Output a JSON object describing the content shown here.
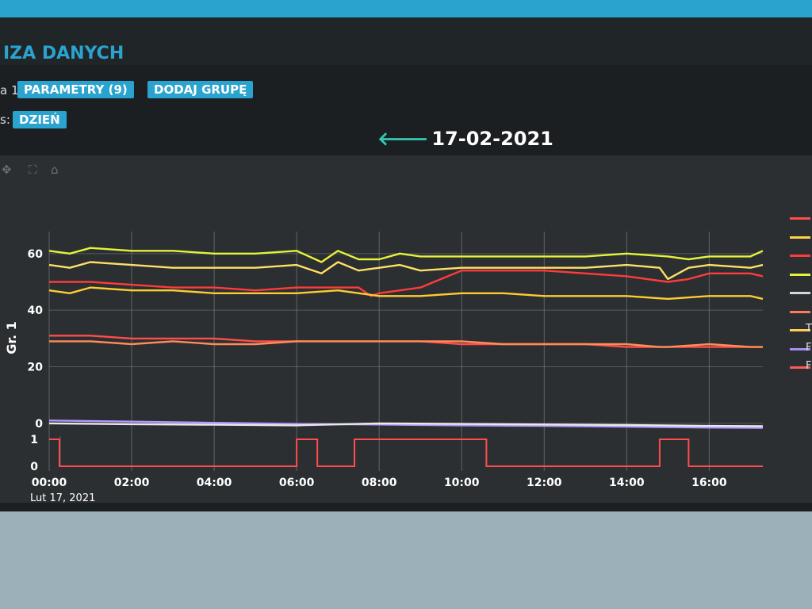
{
  "header": {
    "title": "IZA DANYCH"
  },
  "controls": {
    "group_label": "a 1",
    "params_button": "PARAMETRY (9)",
    "add_group_button": "DODAJ GRUPĘ",
    "range_label": "s:",
    "range_button": "DZIEŃ"
  },
  "date_nav": {
    "arrow": "🡐",
    "date": "17-02-2021"
  },
  "toolbar": {
    "pan_icon": "✥",
    "zoom_icon": "⛶",
    "home_icon": "⌂"
  },
  "legend": [
    {
      "color": "#ff4d4d",
      "label": ""
    },
    {
      "color": "#ffd24a",
      "label": ""
    },
    {
      "color": "#ff3b3b",
      "label": ""
    },
    {
      "color": "#e6f23a",
      "label": ""
    },
    {
      "color": "#d6d6d6",
      "label": ""
    },
    {
      "color": "#ff7a5a",
      "label": ""
    },
    {
      "color": "#ffcc55",
      "label": "T"
    },
    {
      "color": "#a98cf0",
      "label": "F"
    },
    {
      "color": "#ff5a5a",
      "label": "F"
    }
  ],
  "chart_data": [
    {
      "type": "line",
      "ylabel": "Gr. 1",
      "ylim": [
        -2,
        65
      ],
      "yticks": [
        0,
        20,
        40,
        60
      ],
      "xlim": [
        0,
        17.3
      ],
      "grid": true,
      "series": [
        {
          "color": "#e6f23a",
          "x": [
            0,
            0.5,
            1,
            2,
            3,
            4,
            5,
            6,
            6.6,
            7,
            7.5,
            8,
            8.5,
            9,
            10,
            11,
            12,
            13,
            14,
            15,
            15.5,
            16,
            17,
            17.3
          ],
          "y": [
            61,
            60,
            62,
            61,
            61,
            60,
            60,
            61,
            57,
            61,
            58,
            58,
            60,
            59,
            59,
            59,
            59,
            59,
            60,
            59,
            58,
            59,
            59,
            61
          ]
        },
        {
          "color": "#ffe066",
          "x": [
            0,
            0.5,
            1,
            2,
            3,
            4,
            5,
            6,
            6.6,
            7,
            7.5,
            8,
            8.5,
            9,
            10,
            11,
            12,
            13,
            14,
            14.8,
            15,
            15.5,
            16,
            17,
            17.3
          ],
          "y": [
            56,
            55,
            57,
            56,
            55,
            55,
            55,
            56,
            53,
            57,
            54,
            55,
            56,
            54,
            55,
            55,
            55,
            55,
            56,
            55,
            51,
            55,
            56,
            55,
            56
          ]
        },
        {
          "color": "#ff3b3b",
          "x": [
            0,
            1,
            2,
            3,
            4,
            5,
            6,
            7,
            7.5,
            7.8,
            8,
            8.5,
            9,
            9.5,
            10,
            11,
            12,
            13,
            14,
            15,
            15.5,
            16,
            17,
            17.3
          ],
          "y": [
            50,
            50,
            49,
            48,
            48,
            47,
            48,
            48,
            48,
            45,
            46,
            47,
            48,
            51,
            54,
            54,
            54,
            53,
            52,
            50,
            51,
            53,
            53,
            52
          ]
        },
        {
          "color": "#ffcc33",
          "x": [
            0,
            0.5,
            1,
            2,
            3,
            4,
            5,
            6,
            7,
            8,
            9,
            10,
            11,
            12,
            13,
            14,
            15,
            16,
            17,
            17.3
          ],
          "y": [
            47,
            46,
            48,
            47,
            47,
            46,
            46,
            46,
            47,
            45,
            45,
            46,
            46,
            45,
            45,
            45,
            44,
            45,
            45,
            44
          ]
        },
        {
          "color": "#ff4d4d",
          "x": [
            0,
            1,
            2,
            3,
            4,
            5,
            6,
            7,
            8,
            9,
            10,
            11,
            12,
            13,
            14,
            15,
            16,
            17,
            17.3
          ],
          "y": [
            31,
            31,
            30,
            30,
            30,
            29,
            29,
            29,
            29,
            29,
            28,
            28,
            28,
            28,
            27,
            27,
            27,
            27,
            27
          ]
        },
        {
          "color": "#ff8c5a",
          "x": [
            0,
            1,
            2,
            3,
            4,
            5,
            6,
            7,
            8,
            9,
            10,
            11,
            12,
            13,
            14,
            14.8,
            15,
            16,
            17,
            17.3
          ],
          "y": [
            29,
            29,
            28,
            29,
            28,
            28,
            29,
            29,
            29,
            29,
            29,
            28,
            28,
            28,
            28,
            27,
            27,
            28,
            27,
            27
          ]
        },
        {
          "color": "#b497ff",
          "x": [
            0,
            2,
            4,
            6,
            8,
            10,
            12,
            14,
            16,
            17.3
          ],
          "y": [
            1,
            0.6,
            0.2,
            -0.2,
            -0.4,
            -0.7,
            -0.9,
            -1.2,
            -1.5,
            -1.6
          ]
        },
        {
          "color": "#e8e8e8",
          "x": [
            0,
            2,
            4,
            6,
            8,
            10,
            12,
            14,
            16,
            17.3
          ],
          "y": [
            0,
            -0.3,
            -0.5,
            -0.7,
            0,
            -0.2,
            -0.4,
            -0.6,
            -0.9,
            -1
          ]
        }
      ]
    },
    {
      "type": "line",
      "ylim": [
        0,
        1
      ],
      "yticks": [
        0,
        1
      ],
      "xlim": [
        0,
        17.3
      ],
      "grid": true,
      "xticks": [
        "00:00",
        "02:00",
        "04:00",
        "06:00",
        "08:00",
        "10:00",
        "12:00",
        "14:00",
        "16:00"
      ],
      "xtick_hours": [
        0,
        2,
        4,
        6,
        8,
        10,
        12,
        14,
        16
      ],
      "xdate": "Lut 17, 2021",
      "series": [
        {
          "color": "#ff4d4d",
          "step": true,
          "x": [
            0,
            0.2,
            0.25,
            6,
            6.5,
            7,
            7.4,
            10.6,
            14.8,
            15.5,
            17.3
          ],
          "y": [
            1,
            1,
            0,
            1,
            0,
            0,
            1,
            0,
            1,
            0,
            0
          ]
        }
      ]
    }
  ]
}
